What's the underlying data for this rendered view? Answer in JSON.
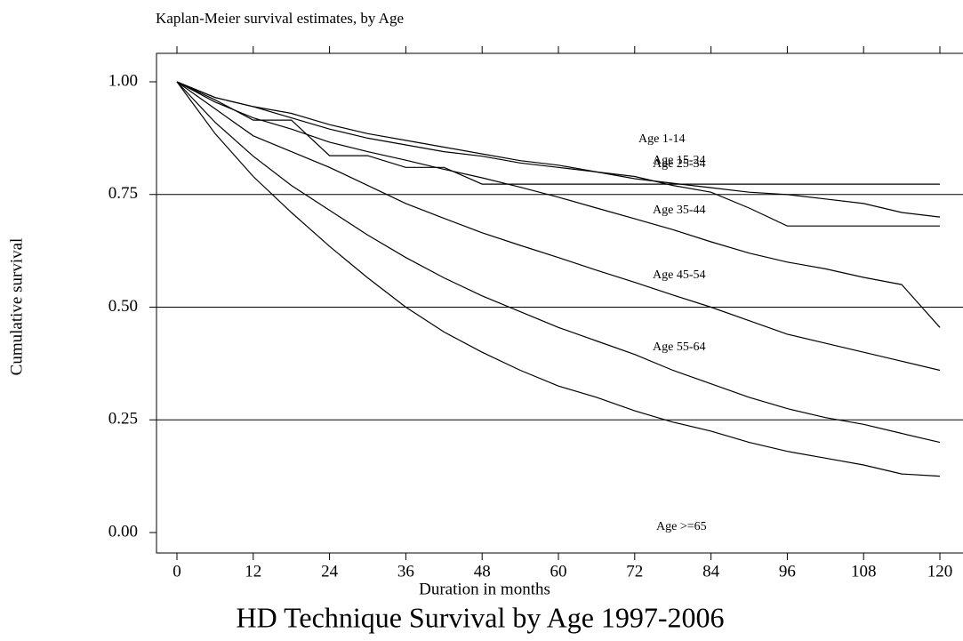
{
  "chart_data": {
    "type": "line",
    "title": "Kaplan-Meier survival estimates, by Age",
    "caption": "HD Technique Survival by Age 1997-2006",
    "x_label": "Duration in months",
    "y_label": "Cumulative survival",
    "x": [
      0,
      6,
      12,
      18,
      24,
      30,
      36,
      42,
      48,
      54,
      60,
      66,
      72,
      78,
      84,
      90,
      96,
      102,
      108,
      114,
      120
    ],
    "series": [
      {
        "name": "Age 1-14",
        "color": "#000000",
        "values": [
          1,
          0.96,
          0.915,
          0.915,
          0.836,
          0.836,
          0.81,
          0.81,
          0.773,
          0.773,
          0.773,
          0.773,
          0.773,
          0.773,
          0.773,
          0.773,
          0.773,
          0.773,
          0.773,
          0.773,
          0.773
        ]
      },
      {
        "name": "Age 15-24",
        "color": "#000000",
        "values": [
          1,
          0.965,
          0.945,
          0.93,
          0.905,
          0.885,
          0.87,
          0.855,
          0.84,
          0.825,
          0.815,
          0.8,
          0.79,
          0.77,
          0.755,
          0.72,
          0.68,
          0.68,
          0.68,
          0.68,
          0.68
        ]
      },
      {
        "name": "Age 25-34",
        "color": "#000000",
        "values": [
          1,
          0.965,
          0.945,
          0.92,
          0.895,
          0.875,
          0.86,
          0.845,
          0.835,
          0.82,
          0.81,
          0.8,
          0.785,
          0.775,
          0.765,
          0.755,
          0.75,
          0.74,
          0.73,
          0.71,
          0.7
        ]
      },
      {
        "name": "Age 35-44",
        "color": "#000000",
        "values": [
          1,
          0.955,
          0.92,
          0.895,
          0.866,
          0.845,
          0.826,
          0.806,
          0.787,
          0.766,
          0.744,
          0.72,
          0.696,
          0.672,
          0.645,
          0.62,
          0.6,
          0.585,
          0.566,
          0.55,
          0.455
        ]
      },
      {
        "name": "Age 45-54",
        "color": "#000000",
        "values": [
          1,
          0.94,
          0.88,
          0.845,
          0.81,
          0.77,
          0.73,
          0.697,
          0.665,
          0.637,
          0.61,
          0.582,
          0.555,
          0.527,
          0.5,
          0.47,
          0.44,
          0.42,
          0.4,
          0.38,
          0.36
        ]
      },
      {
        "name": "Age 55-64",
        "color": "#000000",
        "values": [
          1,
          0.91,
          0.835,
          0.77,
          0.715,
          0.66,
          0.61,
          0.565,
          0.525,
          0.49,
          0.455,
          0.425,
          0.395,
          0.36,
          0.33,
          0.3,
          0.275,
          0.255,
          0.24,
          0.22,
          0.2
        ]
      },
      {
        "name": "Age >=65",
        "color": "#000000",
        "values": [
          1,
          0.885,
          0.79,
          0.71,
          0.635,
          0.565,
          0.5,
          0.445,
          0.4,
          0.36,
          0.325,
          0.3,
          0.27,
          0.245,
          0.225,
          0.2,
          0.18,
          0.165,
          0.15,
          0.13,
          0.125
        ]
      }
    ],
    "xlim": [
      0,
      120
    ],
    "xticks": [
      0,
      12,
      24,
      36,
      48,
      60,
      72,
      84,
      96,
      108,
      120
    ],
    "ylim": [
      0,
      1
    ],
    "yticks": [
      {
        "value": 0,
        "label": "0.00"
      },
      {
        "value": 0.25,
        "label": "0.25"
      },
      {
        "value": 0.5,
        "label": "0.50"
      },
      {
        "value": 0.75,
        "label": "0.75"
      },
      {
        "value": 1,
        "label": "1.00"
      }
    ],
    "reference_lines": [
      0.25,
      0.5,
      0.75
    ]
  }
}
